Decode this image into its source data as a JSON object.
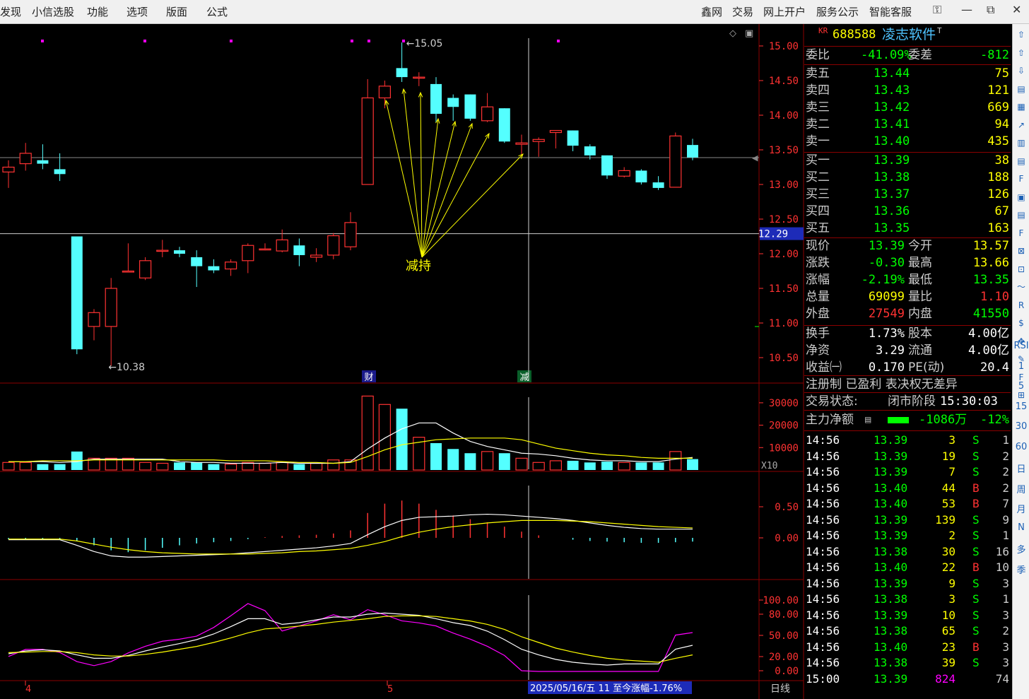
{
  "menu": {
    "left": [
      "发现",
      "小信选股",
      "功能",
      "选项",
      "版面",
      "公式"
    ],
    "right": [
      "鑫网",
      "交易",
      "网上开户",
      "服务公示",
      "智能客服"
    ],
    "window_icons": [
      "shirt-icon",
      "minimize-icon",
      "restore-icon",
      "close-icon"
    ]
  },
  "chart": {
    "price_ticks": [
      "15.00",
      "14.50",
      "14.00",
      "13.50",
      "13.00",
      "12.50",
      "12.00",
      "11.50",
      "11.00",
      "10.50"
    ],
    "current_price_tag": "12.29",
    "high_label": "15.05",
    "low_label": "10.38",
    "annotation": "减持",
    "markers": [
      "财",
      "减"
    ],
    "volume_ticks": [
      "30000",
      "20000",
      "10000"
    ],
    "volume_unit": "X10",
    "macd_ticks": [
      "0.50",
      "0.00"
    ],
    "kdj_ticks": [
      "100.00",
      "80.00",
      "50.00",
      "20.00",
      "0.00"
    ],
    "date_labels": [
      "4",
      "5"
    ],
    "cursor_info": "2025/05/16/五 11 至今涨幅-1.76%",
    "period": "日线",
    "colors": {
      "up": "#ff3232",
      "down": "#54ffff",
      "ma_white": "#ffffff",
      "ma_yellow": "#ffff00",
      "kdj_j": "#ff00ff",
      "grid": "#8b0000"
    }
  },
  "chart_data": {
    "type": "candlestick",
    "title": "",
    "ylim": [
      10.2,
      15.3
    ],
    "candles": [
      {
        "o": 13.18,
        "h": 13.35,
        "l": 12.95,
        "c": 13.25
      },
      {
        "o": 13.3,
        "h": 13.6,
        "l": 13.2,
        "c": 13.45
      },
      {
        "o": 13.35,
        "h": 13.58,
        "l": 13.22,
        "c": 13.3
      },
      {
        "o": 13.22,
        "h": 13.45,
        "l": 13.05,
        "c": 13.15
      },
      {
        "o": 12.25,
        "h": 12.25,
        "l": 10.55,
        "c": 10.62
      },
      {
        "o": 10.95,
        "h": 11.2,
        "l": 10.75,
        "c": 11.15
      },
      {
        "o": 10.95,
        "h": 11.65,
        "l": 10.38,
        "c": 11.5
      },
      {
        "o": 11.75,
        "h": 12.15,
        "l": 11.75,
        "c": 11.75
      },
      {
        "o": 11.65,
        "h": 11.95,
        "l": 11.62,
        "c": 11.9
      },
      {
        "o": 12.05,
        "h": 12.2,
        "l": 11.95,
        "c": 12.05
      },
      {
        "o": 12.05,
        "h": 12.1,
        "l": 11.95,
        "c": 12.0
      },
      {
        "o": 11.95,
        "h": 12.05,
        "l": 11.52,
        "c": 11.82
      },
      {
        "o": 11.82,
        "h": 11.92,
        "l": 11.72,
        "c": 11.76
      },
      {
        "o": 11.78,
        "h": 11.92,
        "l": 11.68,
        "c": 11.88
      },
      {
        "o": 11.9,
        "h": 12.15,
        "l": 11.72,
        "c": 12.12
      },
      {
        "o": 12.07,
        "h": 12.15,
        "l": 12.05,
        "c": 12.07
      },
      {
        "o": 12.04,
        "h": 12.35,
        "l": 12.02,
        "c": 12.2
      },
      {
        "o": 12.12,
        "h": 12.22,
        "l": 11.82,
        "c": 11.98
      },
      {
        "o": 11.95,
        "h": 12.08,
        "l": 11.88,
        "c": 11.98
      },
      {
        "o": 11.98,
        "h": 12.3,
        "l": 11.92,
        "c": 12.26
      },
      {
        "o": 12.1,
        "h": 12.6,
        "l": 12.05,
        "c": 12.45
      },
      {
        "o": 13.0,
        "h": 14.52,
        "l": 13.0,
        "c": 14.25
      },
      {
        "o": 14.25,
        "h": 14.5,
        "l": 14.1,
        "c": 14.42
      },
      {
        "o": 14.68,
        "h": 15.05,
        "l": 14.48,
        "c": 14.55
      },
      {
        "o": 14.55,
        "h": 14.62,
        "l": 14.42,
        "c": 14.55
      },
      {
        "o": 14.45,
        "h": 14.55,
        "l": 13.9,
        "c": 14.02
      },
      {
        "o": 14.25,
        "h": 14.3,
        "l": 13.92,
        "c": 14.12
      },
      {
        "o": 14.3,
        "h": 14.3,
        "l": 13.92,
        "c": 13.95
      },
      {
        "o": 13.92,
        "h": 14.32,
        "l": 13.9,
        "c": 14.12
      },
      {
        "o": 14.1,
        "h": 14.1,
        "l": 13.6,
        "c": 13.62
      },
      {
        "o": 13.58,
        "h": 13.72,
        "l": 13.42,
        "c": 13.6
      },
      {
        "o": 13.62,
        "h": 13.68,
        "l": 13.4,
        "c": 13.65
      },
      {
        "o": 13.75,
        "h": 13.78,
        "l": 13.52,
        "c": 13.78
      },
      {
        "o": 13.78,
        "h": 13.78,
        "l": 13.48,
        "c": 13.56
      },
      {
        "o": 13.55,
        "h": 13.58,
        "l": 13.36,
        "c": 13.42
      },
      {
        "o": 13.42,
        "h": 13.42,
        "l": 13.08,
        "c": 13.13
      },
      {
        "o": 13.12,
        "h": 13.25,
        "l": 13.1,
        "c": 13.2
      },
      {
        "o": 13.2,
        "h": 13.22,
        "l": 13.0,
        "c": 13.03
      },
      {
        "o": 13.03,
        "h": 13.12,
        "l": 12.92,
        "c": 12.95
      },
      {
        "o": 12.96,
        "h": 13.75,
        "l": 12.96,
        "c": 13.7
      },
      {
        "o": 13.57,
        "h": 13.66,
        "l": 13.35,
        "c": 13.39
      }
    ],
    "volume": [
      9,
      9,
      7,
      7,
      22,
      14,
      14,
      14,
      9,
      8,
      9,
      9,
      7,
      7,
      9,
      8,
      9,
      7,
      8,
      12,
      12,
      88,
      78,
      73,
      39,
      32,
      25,
      20,
      22,
      20,
      14,
      9,
      11,
      11,
      9,
      10,
      9,
      9,
      9,
      22,
      13
    ],
    "volume_ma5": [
      1.0,
      1.0,
      1.0,
      0.9,
      1.0,
      1.3,
      1.3,
      1.3,
      1.3,
      1.3,
      1.0,
      0.9,
      0.9,
      0.8,
      0.8,
      0.8,
      0.9,
      0.8,
      0.8,
      0.8,
      1.0,
      2.5,
      3.8,
      4.9,
      5.6,
      5.6,
      4.4,
      3.4,
      2.8,
      2.4,
      2.0,
      1.9,
      1.7,
      1.4,
      1.2,
      1.1,
      1.1,
      1.0,
      1.0,
      1.3,
      1.5
    ],
    "volume_ma10": [
      1.0,
      1.0,
      1.1,
      1.1,
      1.1,
      1.2,
      1.2,
      1.2,
      1.2,
      1.2,
      1.2,
      1.2,
      1.2,
      1.1,
      1.1,
      1.1,
      1.0,
      0.9,
      0.9,
      0.8,
      0.9,
      1.6,
      2.4,
      3.0,
      3.3,
      3.6,
      3.7,
      3.8,
      3.8,
      3.8,
      3.6,
      3.1,
      2.6,
      2.3,
      2.0,
      1.8,
      1.7,
      1.5,
      1.4,
      1.4,
      1.4
    ]
  },
  "quote": {
    "code_prefix": "KR",
    "code": "688588",
    "name": "凌志软件",
    "name_mark": "T",
    "weibi_label": "委比",
    "weibi": "-41.09%",
    "weicha_label": "委差",
    "weicha": "-812",
    "asks": [
      {
        "label": "卖五",
        "price": "13.44",
        "vol": "75"
      },
      {
        "label": "卖四",
        "price": "13.43",
        "vol": "121"
      },
      {
        "label": "卖三",
        "price": "13.42",
        "vol": "669"
      },
      {
        "label": "卖二",
        "price": "13.41",
        "vol": "94"
      },
      {
        "label": "卖一",
        "price": "13.40",
        "vol": "435"
      }
    ],
    "bids": [
      {
        "label": "买一",
        "price": "13.39",
        "vol": "38"
      },
      {
        "label": "买二",
        "price": "13.38",
        "vol": "188"
      },
      {
        "label": "买三",
        "price": "13.37",
        "vol": "126"
      },
      {
        "label": "买四",
        "price": "13.36",
        "vol": "67"
      },
      {
        "label": "买五",
        "price": "13.35",
        "vol": "163"
      }
    ],
    "stats": [
      {
        "l1": "现价",
        "v1": "13.39",
        "c1": "#00ff00",
        "l2": "今开",
        "v2": "13.57",
        "c2": "#ffff00"
      },
      {
        "l1": "涨跌",
        "v1": "-0.30",
        "c1": "#00ff00",
        "l2": "最高",
        "v2": "13.66",
        "c2": "#ffff00"
      },
      {
        "l1": "涨幅",
        "v1": "-2.19%",
        "c1": "#00ff00",
        "l2": "最低",
        "v2": "13.35",
        "c2": "#00ff00"
      },
      {
        "l1": "总量",
        "v1": "69099",
        "c1": "#ffff00",
        "l2": "量比",
        "v2": "1.10",
        "c2": "#ff3232"
      },
      {
        "l1": "外盘",
        "v1": "27549",
        "c1": "#ff3232",
        "l2": "内盘",
        "v2": "41550",
        "c2": "#00ff00"
      },
      {
        "l1": "换手",
        "v1": "1.73%",
        "c1": "#ffffff",
        "l2": "股本",
        "v2": "4.00亿",
        "c2": "#ffffff"
      },
      {
        "l1": "净资",
        "v1": "3.29",
        "c1": "#ffffff",
        "l2": "流通",
        "v2": "4.00亿",
        "c2": "#ffffff"
      },
      {
        "l1": "收益㈠",
        "v1": "0.170",
        "c1": "#ffffff",
        "l2": "PE(动)",
        "v2": "20.4",
        "c2": "#ffffff"
      }
    ],
    "tags": "注册制 已盈利 表决权无差异",
    "status_label": "交易状态:",
    "status": "闭市阶段",
    "status_time": "15:30:03",
    "mainflow_label": "主力净额",
    "mainflow_value": "-1086万",
    "mainflow_pct": "-12%",
    "ticks": [
      {
        "t": "14:56",
        "p": "13.39",
        "v": "3",
        "d": "S",
        "n": "1"
      },
      {
        "t": "14:56",
        "p": "13.39",
        "v": "19",
        "d": "S",
        "n": "2"
      },
      {
        "t": "14:56",
        "p": "13.39",
        "v": "7",
        "d": "S",
        "n": "2"
      },
      {
        "t": "14:56",
        "p": "13.40",
        "v": "44",
        "d": "B",
        "n": "2"
      },
      {
        "t": "14:56",
        "p": "13.40",
        "v": "53",
        "d": "B",
        "n": "7"
      },
      {
        "t": "14:56",
        "p": "13.39",
        "v": "139",
        "d": "S",
        "n": "9"
      },
      {
        "t": "14:56",
        "p": "13.39",
        "v": "2",
        "d": "S",
        "n": "1"
      },
      {
        "t": "14:56",
        "p": "13.38",
        "v": "30",
        "d": "S",
        "n": "16"
      },
      {
        "t": "14:56",
        "p": "13.40",
        "v": "22",
        "d": "B",
        "n": "10"
      },
      {
        "t": "14:56",
        "p": "13.39",
        "v": "9",
        "d": "S",
        "n": "3"
      },
      {
        "t": "14:56",
        "p": "13.38",
        "v": "3",
        "d": "S",
        "n": "1"
      },
      {
        "t": "14:56",
        "p": "13.39",
        "v": "10",
        "d": "S",
        "n": "3"
      },
      {
        "t": "14:56",
        "p": "13.38",
        "v": "65",
        "d": "S",
        "n": "2"
      },
      {
        "t": "14:56",
        "p": "13.40",
        "v": "23",
        "d": "B",
        "n": "3"
      },
      {
        "t": "14:56",
        "p": "13.38",
        "v": "39",
        "d": "S",
        "n": "3"
      },
      {
        "t": "15:00",
        "p": "13.39",
        "v": "824",
        "d": "",
        "n": "74"
      }
    ]
  },
  "toolbar": {
    "icons": [
      "up-arrow-icon",
      "up-icon",
      "down-icon",
      "report-icon",
      "grid-icon",
      "trend-icon",
      "bar-icon",
      "list-icon",
      "fund-icon",
      "doc-icon",
      "chip-icon",
      "flag-icon",
      "fund2-icon",
      "chart-icon",
      "wave-icon",
      "rsi-icon",
      "dollar-icon",
      "move-icon",
      "pen-icon",
      "f5-icon",
      "calc-icon"
    ],
    "labels": [
      "RSI",
      "1",
      "5",
      "15",
      "30",
      "60",
      "日",
      "周",
      "月",
      "N",
      "多",
      "季"
    ]
  }
}
